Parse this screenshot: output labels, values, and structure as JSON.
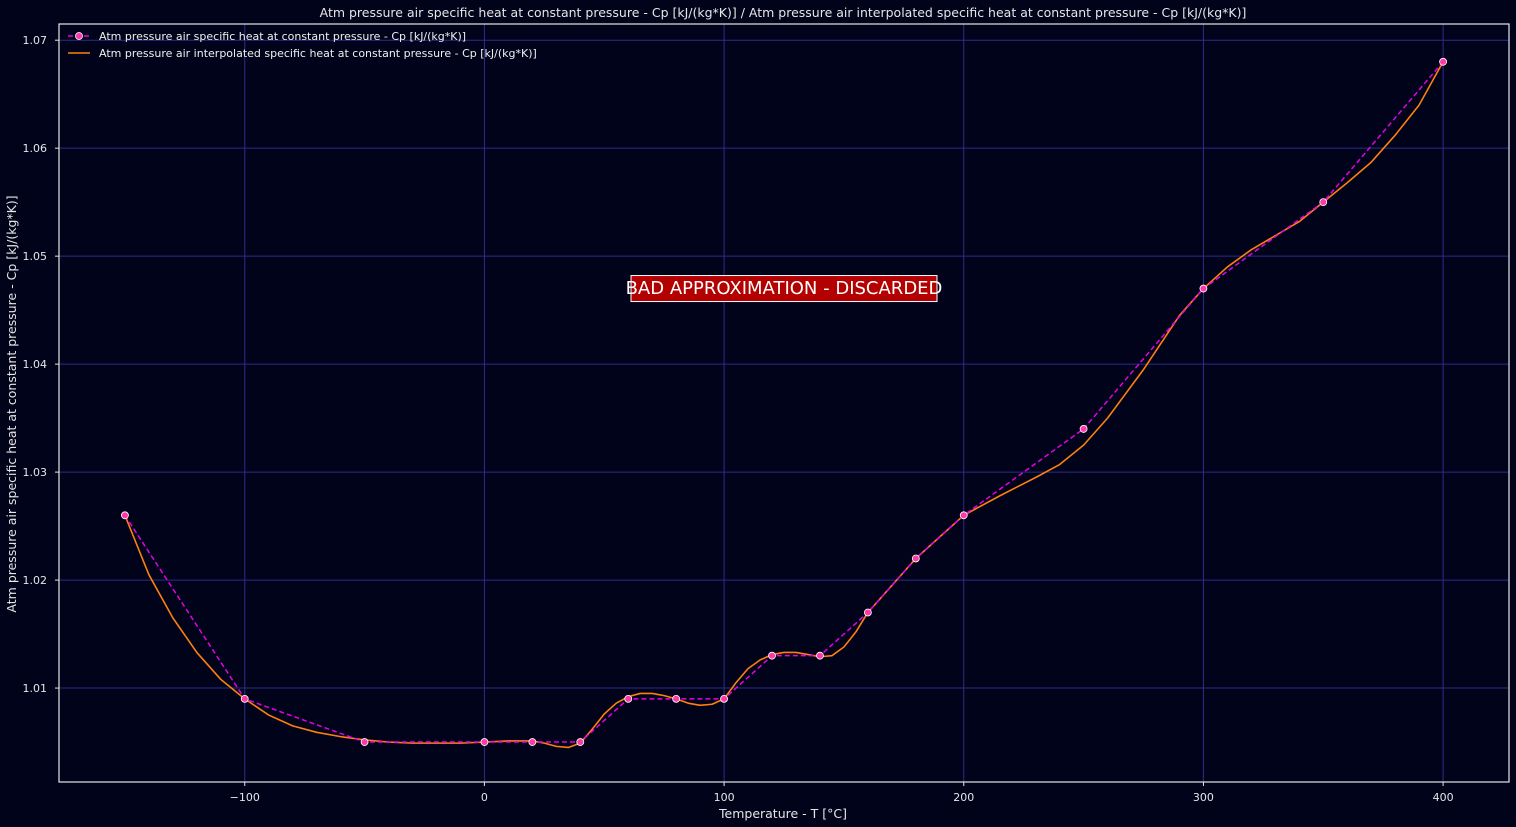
{
  "chart_data": {
    "type": "line",
    "title": "Atm pressure air specific heat at constant pressure - Cp [kJ/(kg*K)]  /  Atm pressure air interpolated specific heat at constant pressure - Cp [kJ/(kg*K)]",
    "xlabel": "Temperature - T [°C]",
    "ylabel": "Atm pressure air specific heat at constant pressure - Cp [kJ/(kg*K)]",
    "xlim": [
      -177.5,
      427.5
    ],
    "ylim": [
      1.0013,
      1.0715
    ],
    "xticks": [
      -100,
      0,
      100,
      200,
      300,
      400
    ],
    "xtick_labels": [
      "−100",
      "0",
      "100",
      "200",
      "300",
      "400"
    ],
    "yticks": [
      1.01,
      1.02,
      1.03,
      1.04,
      1.05,
      1.06,
      1.07
    ],
    "ytick_labels": [
      "1.01",
      "1.02",
      "1.03",
      "1.04",
      "1.05",
      "1.06",
      "1.07"
    ],
    "grid": true,
    "legend_position": "top-left",
    "series": [
      {
        "name": "Atm pressure air specific heat at constant pressure - Cp [kJ/(kg*K)]",
        "style": "dashed-markers",
        "color": "#e600e6",
        "marker_color": "#ff3aa8",
        "x": [
          -150,
          -100,
          -50,
          0,
          20,
          40,
          60,
          80,
          100,
          120,
          140,
          160,
          180,
          200,
          250,
          300,
          350,
          400
        ],
        "y": [
          1.026,
          1.009,
          1.005,
          1.005,
          1.005,
          1.005,
          1.009,
          1.009,
          1.009,
          1.013,
          1.013,
          1.017,
          1.022,
          1.026,
          1.034,
          1.047,
          1.055,
          1.068
        ]
      },
      {
        "name": "Atm pressure air interpolated specific heat at constant pressure - Cp [kJ/(kg*K)]",
        "style": "solid",
        "color": "#ff7f0e",
        "x": [
          -150,
          -140,
          -130,
          -120,
          -110,
          -100,
          -90,
          -80,
          -70,
          -60,
          -50,
          -40,
          -30,
          -20,
          -10,
          0,
          10,
          20,
          25,
          30,
          35,
          40,
          45,
          50,
          55,
          60,
          65,
          70,
          75,
          80,
          85,
          90,
          95,
          100,
          105,
          110,
          115,
          120,
          125,
          130,
          135,
          140,
          145,
          150,
          155,
          160,
          170,
          180,
          190,
          200,
          215,
          230,
          240,
          250,
          260,
          275,
          290,
          300,
          310,
          320,
          330,
          340,
          350,
          360,
          370,
          380,
          390,
          400
        ],
        "y": [
          1.026,
          1.0205,
          1.0165,
          1.0133,
          1.0108,
          1.009,
          1.0075,
          1.0065,
          1.0059,
          1.0055,
          1.0052,
          1.005,
          1.0049,
          1.0049,
          1.0049,
          1.005,
          1.0051,
          1.0051,
          1.0049,
          1.0046,
          1.0045,
          1.0049,
          1.0062,
          1.0076,
          1.0086,
          1.0092,
          1.0095,
          1.0095,
          1.0093,
          1.009,
          1.0086,
          1.0084,
          1.0085,
          1.009,
          1.0105,
          1.0118,
          1.0126,
          1.0131,
          1.0133,
          1.0133,
          1.0131,
          1.0129,
          1.013,
          1.0138,
          1.0152,
          1.017,
          1.0195,
          1.022,
          1.024,
          1.026,
          1.0278,
          1.0295,
          1.0307,
          1.0325,
          1.035,
          1.0395,
          1.0445,
          1.047,
          1.049,
          1.0506,
          1.0519,
          1.0532,
          1.055,
          1.0568,
          1.0587,
          1.0612,
          1.064,
          1.068
        ]
      }
    ],
    "annotation": {
      "text": "BAD APPROXIMATION - DISCARDED",
      "x": 125,
      "y": 1.047,
      "background": "#b30000",
      "border": "#ffffff"
    },
    "colors": {
      "background": "#00031a",
      "grid": "#2b2e8c",
      "frame": "#e6e6e6"
    }
  }
}
